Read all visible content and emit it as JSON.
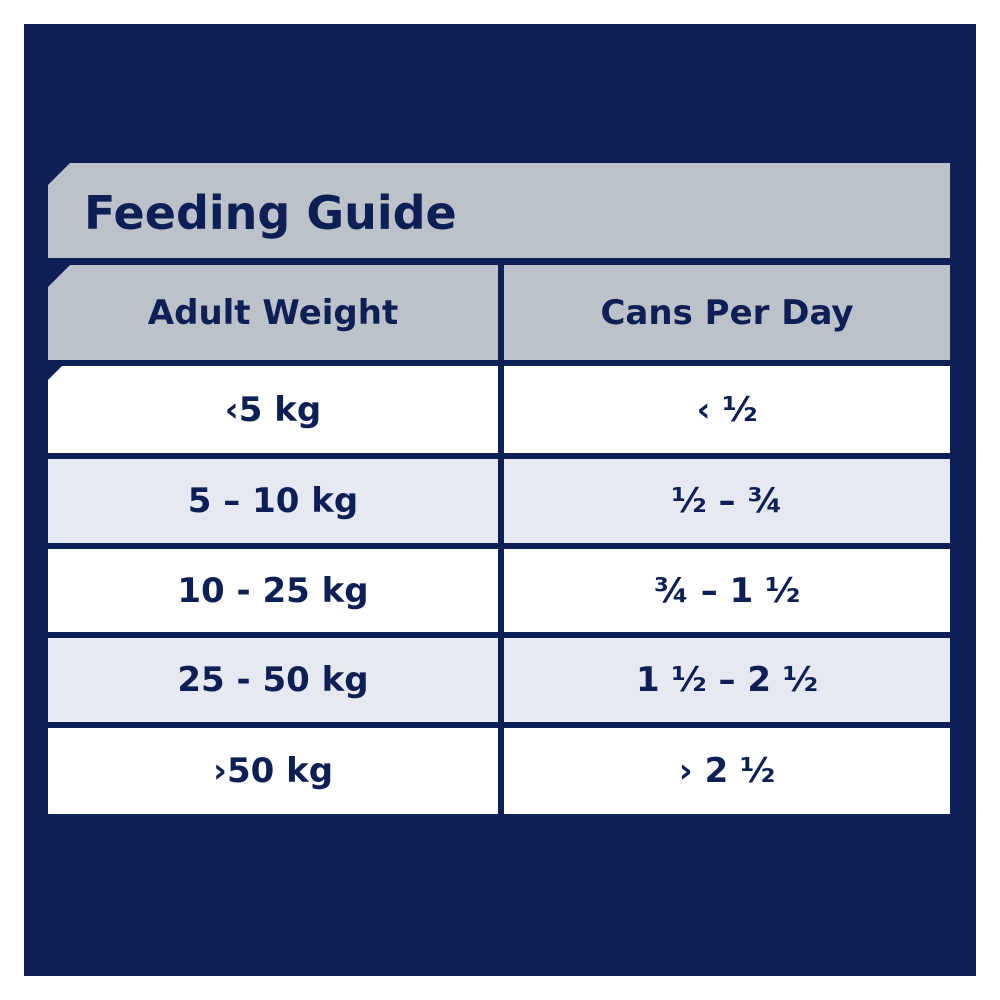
{
  "title": "Feeding Guide",
  "table": {
    "header": [
      "Adult Weight",
      "Cans Per Day"
    ],
    "rows": [
      [
        "‹5 kg",
        "‹ ½"
      ],
      [
        "5 – 10 kg",
        "½ – ¾"
      ],
      [
        "10 - 25 kg",
        "¾ – 1 ½"
      ],
      [
        "25 - 50 kg",
        "1 ½ – 2 ½"
      ],
      [
        "›50 kg",
        "› 2 ½"
      ]
    ]
  }
}
